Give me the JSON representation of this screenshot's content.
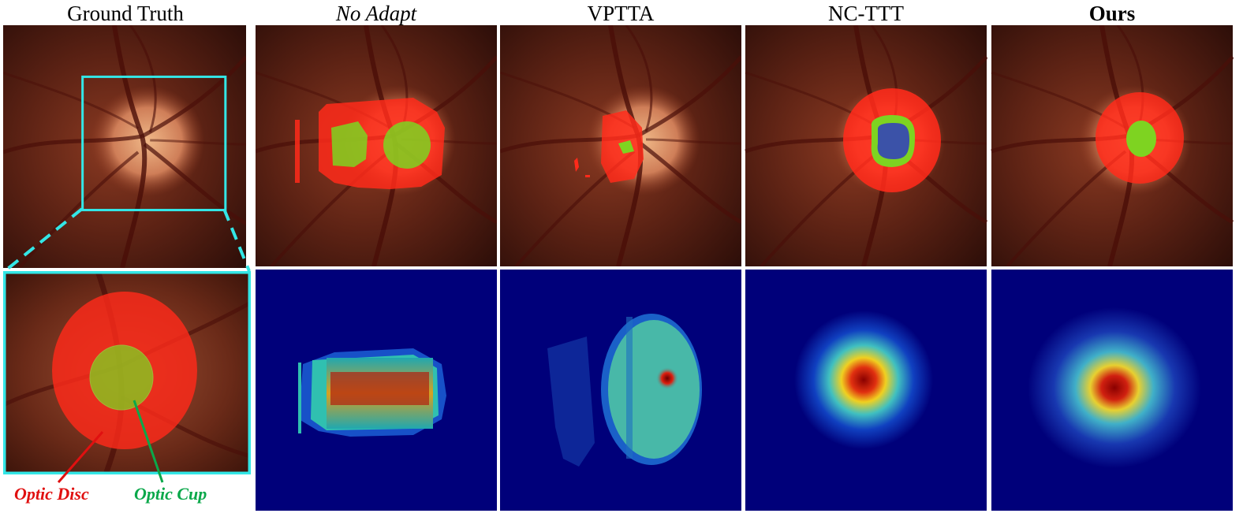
{
  "columns": [
    {
      "title": "Ground Truth",
      "style": "normal"
    },
    {
      "title": "No Adapt",
      "style": "italic"
    },
    {
      "title": "VPTTA",
      "style": "normal"
    },
    {
      "title": "NC-TTT",
      "style": "normal"
    },
    {
      "title": "Ours",
      "style": "bold"
    }
  ],
  "legend": {
    "disc": {
      "label": "Optic Disc",
      "color": "#e01010"
    },
    "cup": {
      "label": "Optic Cup",
      "color": "#0aa84a"
    }
  },
  "colors": {
    "zoom_box": "#33e6e6",
    "disc_mask": "#ff2a1a",
    "cup_mask": "#7ed321",
    "heatmap_background": "#00007a"
  },
  "heatmap_levels": {
    "no_adapt_peak": 0.8,
    "vptta_peak": 1.0,
    "nc_ttt_peak": 0.85,
    "ours_peak": 0.85
  }
}
